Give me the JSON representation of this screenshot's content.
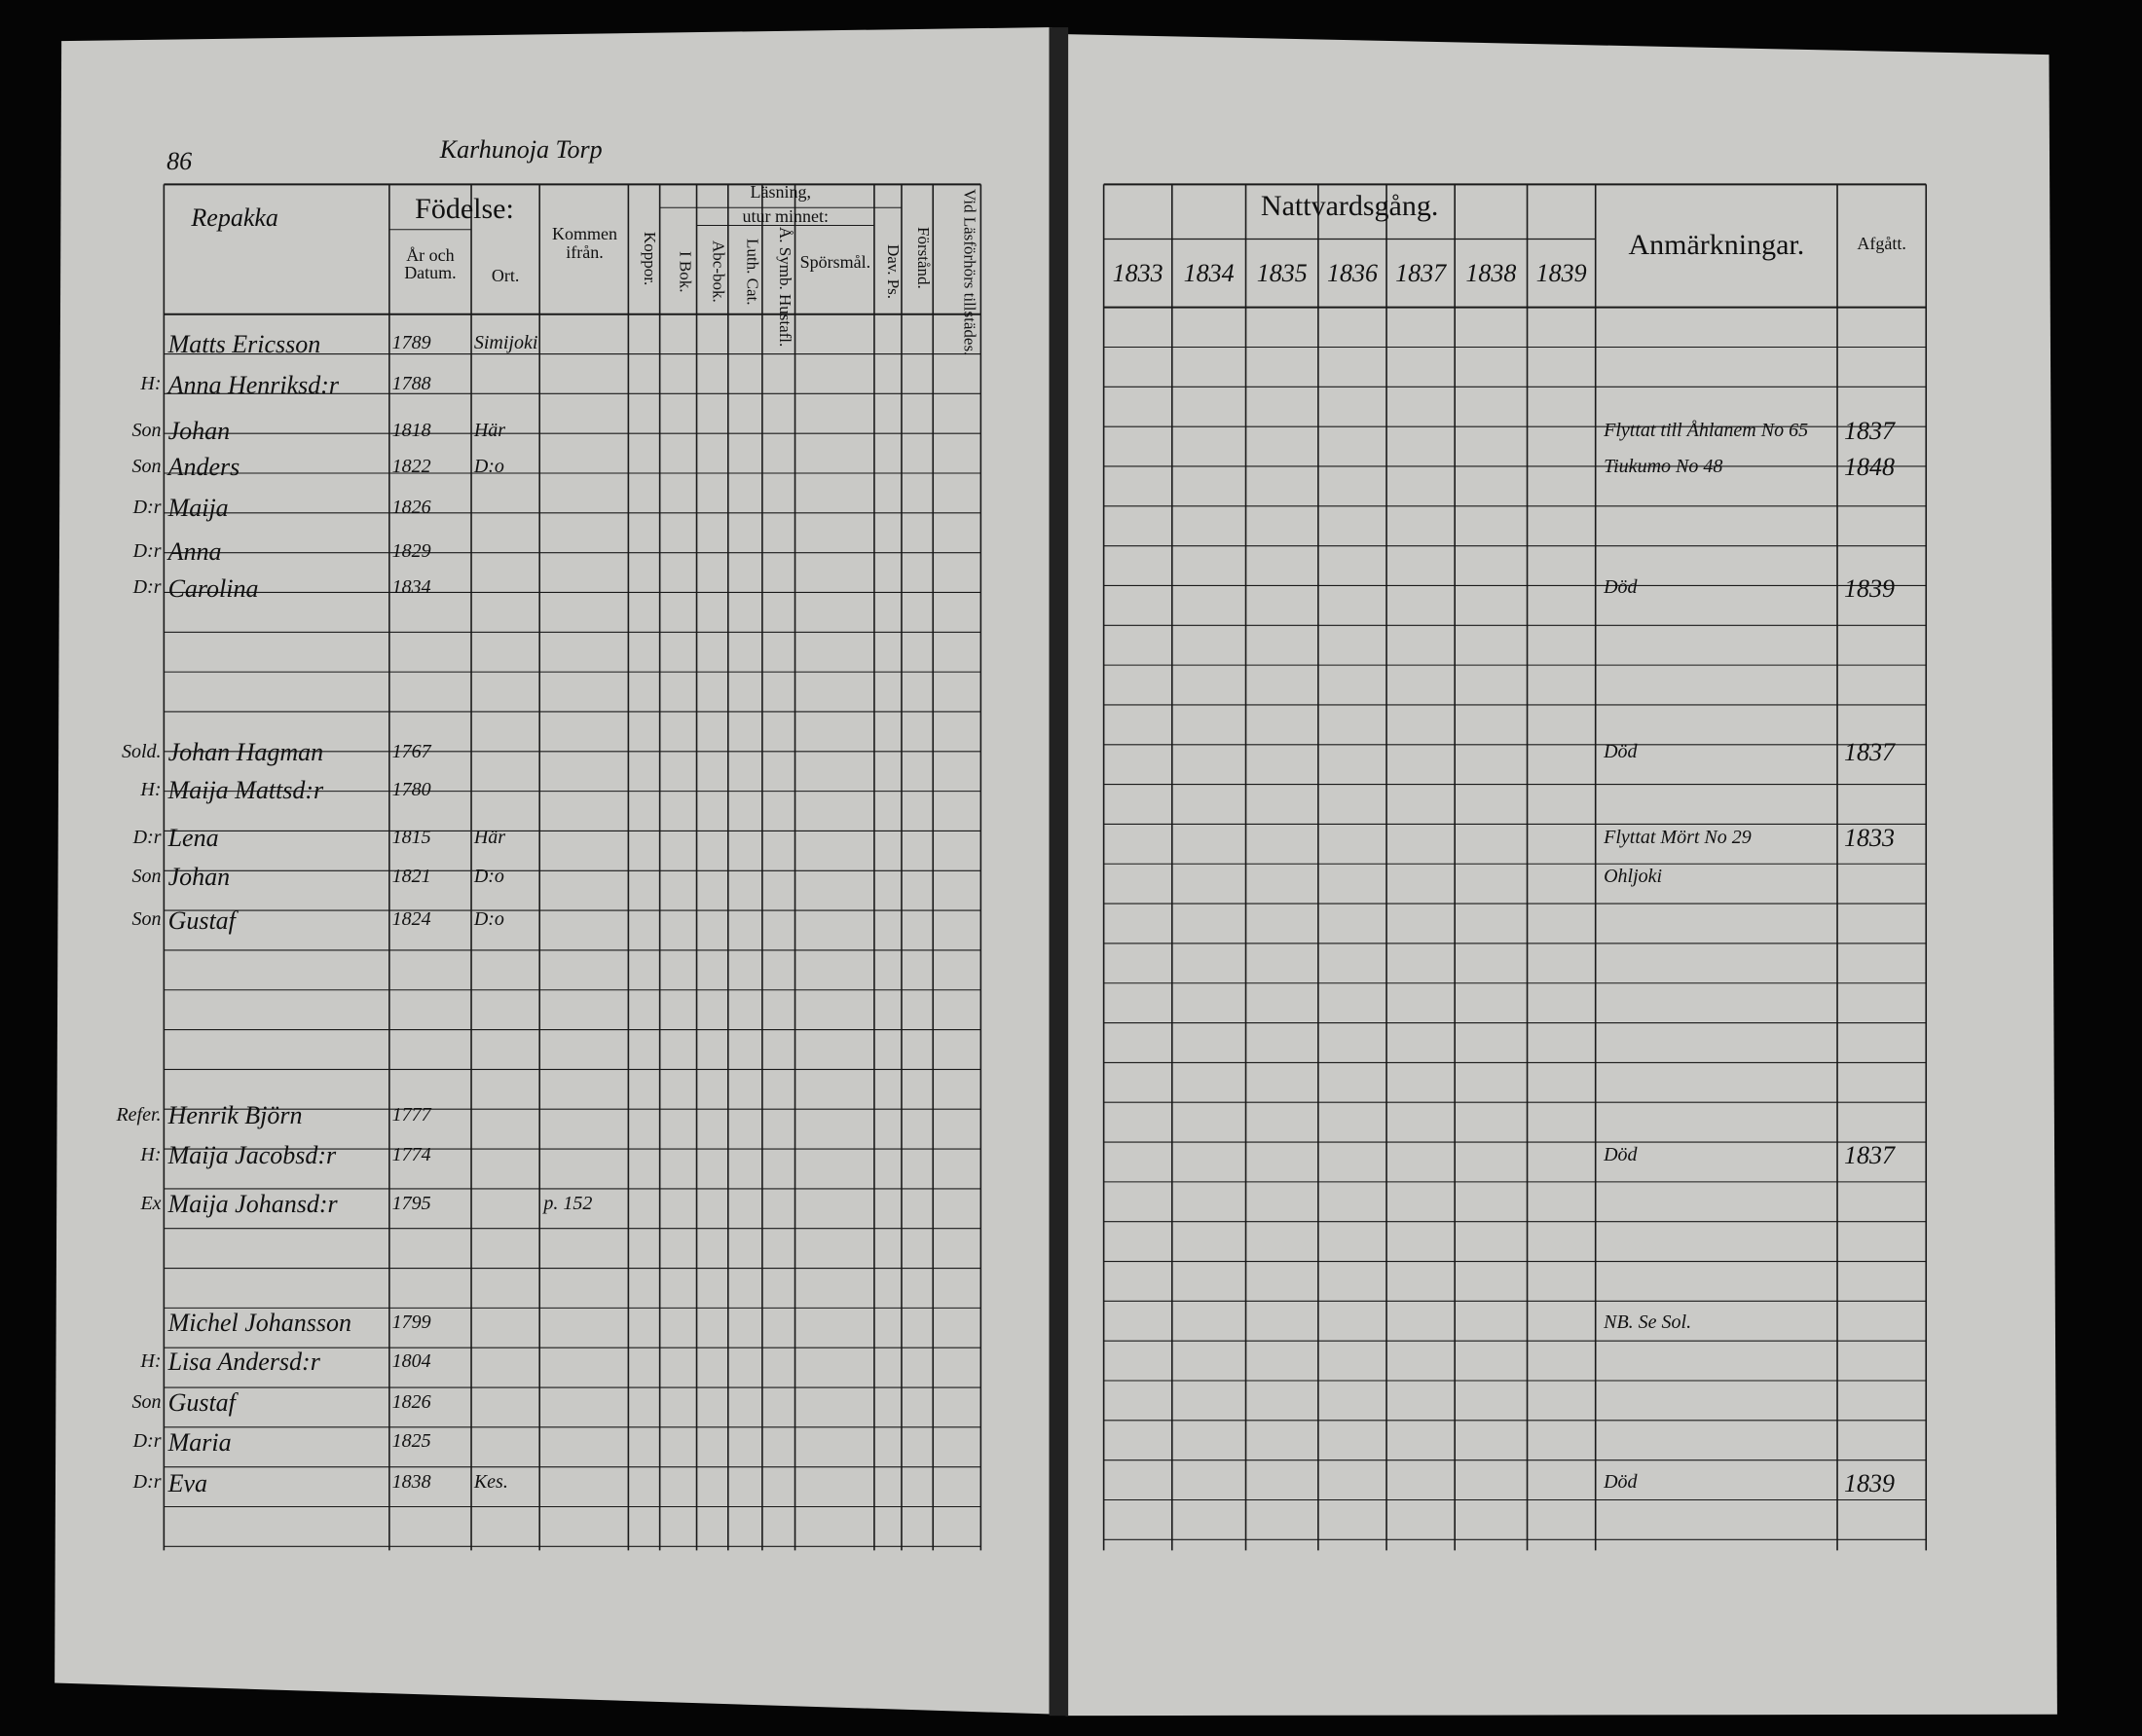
{
  "left_page": {
    "page_number": "86",
    "title": "Karhunoja Torp",
    "village": "Repakka",
    "headers": {
      "birth": "Födelse:",
      "date": "År och Datum.",
      "place": "Ort.",
      "from": "Kommen ifrån.",
      "pox": "Koppor.",
      "reading": "Läsning,",
      "by_heart": "utur minnet:",
      "book": "I Bok.",
      "abc": "Abc-bok.",
      "catechism": "Luth. Cat.",
      "symbols": "Å. Symb. Hustafl.",
      "questions": "Spörsmål.",
      "psalms": "Dav. Ps.",
      "understanding": "Förstånd.",
      "examination": "Vid Läsförhörs tillstädes."
    }
  },
  "right_page": {
    "communion": "Nattvardsgång.",
    "years": [
      "1833",
      "1834",
      "1835",
      "1836",
      "1837",
      "1838",
      "1839"
    ],
    "remarks": "Anmärkningar.",
    "departed": "Afgått."
  },
  "persons": [
    {
      "role": null,
      "name": "Matts Ericsson",
      "born": "1789",
      "place": "Simijoki",
      "from": null,
      "remark": null,
      "departed": null
    },
    {
      "role": "H:",
      "name": "Anna Henriksd:r",
      "born": "1788",
      "place": null,
      "from": null,
      "remark": null,
      "departed": null
    },
    {
      "role": "Son",
      "name": "Johan",
      "born": "1818",
      "place": "Här",
      "from": null,
      "remark": "Flyttat till Åhlanem No 65",
      "departed": "1837"
    },
    {
      "role": "Son",
      "name": "Anders",
      "born": "1822",
      "place": "D:o",
      "from": null,
      "remark": "Tiukumo No 48",
      "departed": "1848"
    },
    {
      "role": "D:r",
      "name": "Maija",
      "born": "1826",
      "place": null,
      "from": null,
      "remark": null,
      "departed": null
    },
    {
      "role": "D:r",
      "name": "Anna",
      "born": "1829",
      "place": null,
      "from": null,
      "remark": null,
      "departed": null
    },
    {
      "role": "D:r",
      "name": "Carolina",
      "born": "1834",
      "place": null,
      "from": null,
      "remark": "Död",
      "departed": "1839"
    },
    {
      "role": "Sold.",
      "name": "Johan Hagman",
      "born": "1767",
      "place": null,
      "from": null,
      "remark": "Död",
      "departed": "1837"
    },
    {
      "role": "H:",
      "name": "Maija Mattsd:r",
      "born": "1780",
      "place": null,
      "from": null,
      "remark": null,
      "departed": null
    },
    {
      "role": "D:r",
      "name": "Lena",
      "born": "1815",
      "place": "Här",
      "from": null,
      "remark": "Flyttat Mört No 29",
      "departed": "1833"
    },
    {
      "role": "Son",
      "name": "Johan",
      "born": "1821",
      "place": "D:o",
      "from": null,
      "remark": "Ohljoki",
      "departed": null
    },
    {
      "role": "Son",
      "name": "Gustaf",
      "born": "1824",
      "place": "D:o",
      "from": null,
      "remark": null,
      "departed": null
    },
    {
      "role": "Refer.",
      "name": "Henrik Björn",
      "born": "1777",
      "place": null,
      "from": null,
      "remark": null,
      "departed": null
    },
    {
      "role": "H:",
      "name": "Maija Jacobsd:r",
      "born": "1774",
      "place": null,
      "from": null,
      "remark": "Död",
      "departed": "1837"
    },
    {
      "role": "Ex",
      "name": "Maija Johansd:r",
      "born": "1795",
      "place": null,
      "from": "p. 152",
      "remark": null,
      "departed": null
    },
    {
      "role": null,
      "name": "Michel Johansson",
      "born": "1799",
      "place": null,
      "from": null,
      "remark": "NB. Se Sol.",
      "departed": null
    },
    {
      "role": "H:",
      "name": "Lisa Andersd:r",
      "born": "1804",
      "place": null,
      "from": null,
      "remark": null,
      "departed": null
    },
    {
      "role": "Son",
      "name": "Gustaf",
      "born": "1826",
      "place": null,
      "from": null,
      "remark": null,
      "departed": null
    },
    {
      "role": "D:r",
      "name": "Maria",
      "born": "1825",
      "place": null,
      "from": null,
      "remark": null,
      "departed": null
    },
    {
      "role": "D:r",
      "name": "Eva",
      "born": "1838",
      "place": "Kes.",
      "from": null,
      "remark": "Död",
      "departed": "1839"
    }
  ]
}
